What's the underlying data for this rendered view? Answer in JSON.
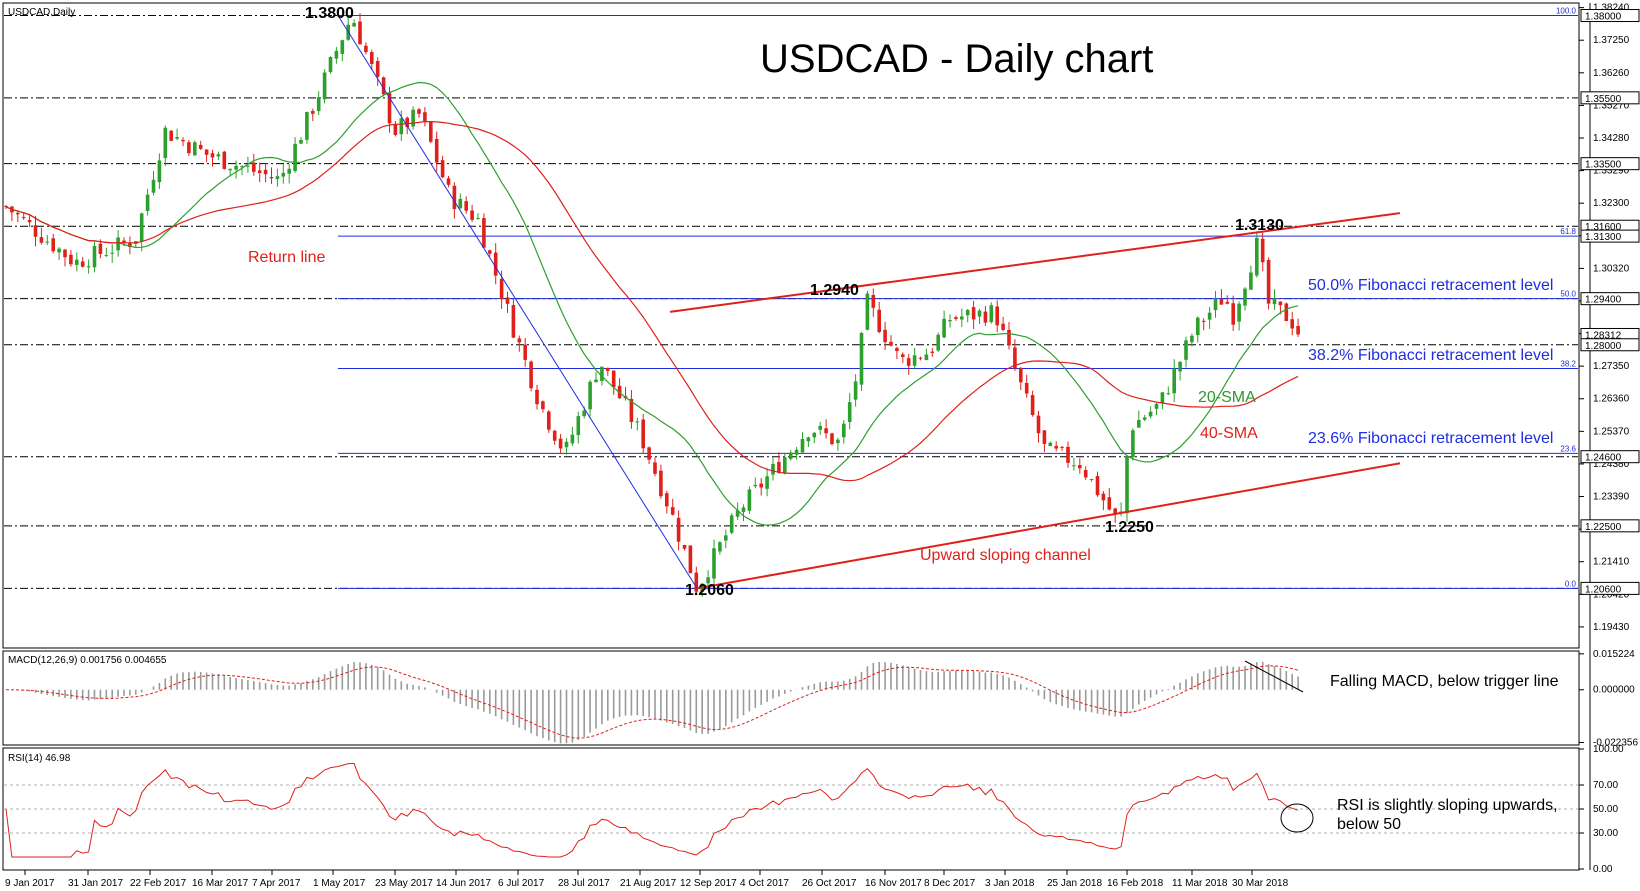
{
  "colors": {
    "up": "#2ca02c",
    "down": "#e0201a",
    "sma20": "#2ca02c",
    "sma40": "#e0201a",
    "fib": "#1f2de0",
    "channel": "#e0201a",
    "macd_hist": "#9a9a9a",
    "macd_signal": "#e0201a",
    "rsi": "#e0201a"
  },
  "header": {
    "symbol_label": "USDCAD,Daily",
    "title": "USDCAD - Daily chart"
  },
  "price_axis": {
    "ticks": [
      "1.38240",
      "1.37250",
      "1.36260",
      "1.35270",
      "1.34280",
      "1.33290",
      "1.32300",
      "1.31310",
      "1.30320",
      "1.29330",
      "1.28340",
      "1.27350",
      "1.26360",
      "1.25370",
      "1.24380",
      "1.23390",
      "1.22400",
      "1.21410",
      "1.20420",
      "1.19430"
    ],
    "tick_values": [
      1.3824,
      1.3725,
      1.3626,
      1.3527,
      1.3428,
      1.3329,
      1.323,
      1.3131,
      1.3032,
      1.2933,
      1.2834,
      1.2735,
      1.2636,
      1.2537,
      1.2438,
      1.2339,
      1.224,
      1.2141,
      1.2042,
      1.1943
    ],
    "min": 1.1885,
    "max": 1.3835,
    "highlight_labels": [
      {
        "text": "1.38000",
        "value": 1.38
      },
      {
        "text": "1.35500",
        "value": 1.355
      },
      {
        "text": "1.33500",
        "value": 1.335
      },
      {
        "text": "1.31600",
        "value": 1.316
      },
      {
        "text": "1.31300",
        "value": 1.313
      },
      {
        "text": "1.29400",
        "value": 1.294
      },
      {
        "text": "1.28312",
        "value": 1.28312
      },
      {
        "text": "1.28000",
        "value": 1.28
      },
      {
        "text": "1.24600",
        "value": 1.246
      },
      {
        "text": "1.22500",
        "value": 1.225
      },
      {
        "text": "1.20600",
        "value": 1.206
      }
    ]
  },
  "dash_levels": [
    1.38,
    1.355,
    1.335,
    1.316,
    1.294,
    1.28,
    1.246,
    1.225,
    1.206
  ],
  "fibonacci": [
    {
      "pct_label": "100.0",
      "value": 1.38,
      "text": ""
    },
    {
      "pct_label": "61.8",
      "value": 1.313,
      "text": ""
    },
    {
      "pct_label": "50.0",
      "value": 1.294,
      "text": "50.0% Fibonacci retracement level"
    },
    {
      "pct_label": "38.2",
      "value": 1.2728,
      "text": "38.2% Fibonacci retracement level"
    },
    {
      "pct_label": "23.6",
      "value": 1.247,
      "text": "23.6% Fibonacci retracement level"
    },
    {
      "pct_label": "0.0",
      "value": 1.206,
      "text": ""
    }
  ],
  "annotations": {
    "return_line": "Return line",
    "channel": "Upward sloping channel",
    "sma20": "20-SMA",
    "sma40": "40-SMA",
    "p1": "1.3800",
    "p2": "1.2940",
    "p3": "1.3130",
    "p4": "1.2250",
    "p5": "1.2060"
  },
  "x_axis": {
    "labels": [
      "9 Jan 2017",
      "31 Jan 2017",
      "22 Feb 2017",
      "16 Mar 2017",
      "7 Apr 2017",
      "1 May 2017",
      "23 May 2017",
      "14 Jun 2017",
      "6 Jul 2017",
      "28 Jul 2017",
      "21 Aug 2017",
      "12 Sep 2017",
      "4 Oct 2017",
      "26 Oct 2017",
      "16 Nov 2017",
      "8 Dec 2017",
      "3 Jan 2018",
      "25 Jan 2018",
      "16 Feb 2018",
      "11 Mar 2018",
      "30 Mar 2018"
    ]
  },
  "macd": {
    "label": "MACD(12,26,9) 0.001756 0.004655",
    "ticks": [
      "0.015224",
      "0.000000",
      "-0.022356"
    ],
    "tick_values": [
      0.015224,
      0,
      -0.022356
    ],
    "note": "Falling MACD, below trigger line"
  },
  "rsi": {
    "label": "RSI(14) 46.98",
    "ticks": [
      "100.00",
      "70.00",
      "50.00",
      "30.00",
      "0.00"
    ],
    "tick_values": [
      100,
      70,
      50,
      30,
      0
    ],
    "note_line1": "RSI is slightly sloping upwards,",
    "note_line2": "below 50"
  },
  "chart_data": {
    "type": "candlestick",
    "title": "USDCAD - Daily chart",
    "symbol": "USDCAD,Daily",
    "close_path": [
      [
        "9 Jan 2017",
        1.322
      ],
      [
        "31 Jan 2017",
        1.305
      ],
      [
        "22 Feb 2017",
        1.312
      ],
      [
        "7 Mar 2017",
        1.345
      ],
      [
        "16 Mar 2017",
        1.338
      ],
      [
        "7 Apr 2017",
        1.33
      ],
      [
        "19 Apr 2017",
        1.35
      ],
      [
        "1 May 2017",
        1.372
      ],
      [
        "5 May 2017",
        1.38
      ],
      [
        "23 May 2017",
        1.345
      ],
      [
        "31 May 2017",
        1.35
      ],
      [
        "14 Jun 2017",
        1.325
      ],
      [
        "26 Jun 2017",
        1.318
      ],
      [
        "6 Jul 2017",
        1.288
      ],
      [
        "18 Jul 2017",
        1.262
      ],
      [
        "28 Jul 2017",
        1.247
      ],
      [
        "8 Aug 2017",
        1.275
      ],
      [
        "21 Aug 2017",
        1.253
      ],
      [
        "31 Aug 2017",
        1.23
      ],
      [
        "8 Sep 2017",
        1.206
      ],
      [
        "20 Sep 2017",
        1.23
      ],
      [
        "4 Oct 2017",
        1.255
      ],
      [
        "12 Oct 2017",
        1.25
      ],
      [
        "20 Oct 2017",
        1.275
      ],
      [
        "26 Oct 2017",
        1.294
      ],
      [
        "7 Nov 2017",
        1.275
      ],
      [
        "16 Nov 2017",
        1.278
      ],
      [
        "24 Nov 2017",
        1.288
      ],
      [
        "8 Dec 2017",
        1.29
      ],
      [
        "20 Dec 2017",
        1.268
      ],
      [
        "3 Jan 2018",
        1.248
      ],
      [
        "15 Jan 2018",
        1.244
      ],
      [
        "25 Jan 2018",
        1.225
      ],
      [
        "2 Feb 2018",
        1.255
      ],
      [
        "16 Feb 2018",
        1.262
      ],
      [
        "26 Feb 2018",
        1.285
      ],
      [
        "7 Mar 2018",
        1.295
      ],
      [
        "11 Mar 2018",
        1.288
      ],
      [
        "19 Mar 2018",
        1.313
      ],
      [
        "23 Mar 2018",
        1.293
      ],
      [
        "30 Mar 2018",
        1.288
      ],
      [
        "5 Apr 2018",
        1.2831
      ]
    ],
    "xlabel": "",
    "ylabel": "",
    "ylim": [
      1.1885,
      1.3835
    ],
    "last_price": 1.28312,
    "series": [
      {
        "name": "20-SMA"
      },
      {
        "name": "40-SMA"
      }
    ],
    "annotations": [
      "1.3800",
      "1.2940",
      "1.3130",
      "1.2250",
      "1.2060",
      "Return line",
      "Upward sloping channel",
      "50.0% Fibonacci retracement level",
      "38.2% Fibonacci retracement level",
      "23.6% Fibonacci retracement level"
    ],
    "grid": false
  }
}
